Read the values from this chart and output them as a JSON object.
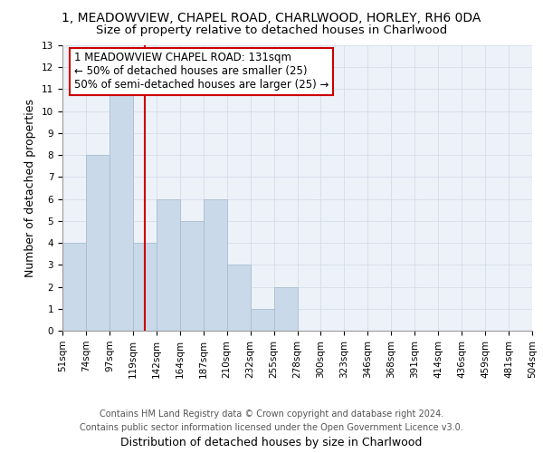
{
  "title_line1": "1, MEADOWVIEW, CHAPEL ROAD, CHARLWOOD, HORLEY, RH6 0DA",
  "title_line2": "Size of property relative to detached houses in Charlwood",
  "xlabel": "Distribution of detached houses by size in Charlwood",
  "ylabel": "Number of detached properties",
  "bins": [
    51,
    74,
    97,
    119,
    142,
    164,
    187,
    210,
    232,
    255,
    278,
    300,
    323,
    346,
    368,
    391,
    414,
    436,
    459,
    481,
    504
  ],
  "bin_labels": [
    "51sqm",
    "74sqm",
    "97sqm",
    "119sqm",
    "142sqm",
    "164sqm",
    "187sqm",
    "210sqm",
    "232sqm",
    "255sqm",
    "278sqm",
    "300sqm",
    "323sqm",
    "346sqm",
    "368sqm",
    "391sqm",
    "414sqm",
    "436sqm",
    "459sqm",
    "481sqm",
    "504sqm"
  ],
  "counts": [
    4,
    8,
    11,
    4,
    6,
    5,
    6,
    3,
    1,
    2,
    0,
    0,
    0,
    0,
    0,
    0,
    0,
    0,
    0,
    0
  ],
  "bar_color": "#c9d9ea",
  "bar_edge_color": "#a8bece",
  "grid_color": "#d4dde8",
  "background_color": "#edf2f8",
  "subject_value": 131,
  "vline_color": "#cc0000",
  "annotation_text": "1 MEADOWVIEW CHAPEL ROAD: 131sqm\n← 50% of detached houses are smaller (25)\n50% of semi-detached houses are larger (25) →",
  "annotation_box_edge": "#cc0000",
  "ylim": [
    0,
    13
  ],
  "yticks": [
    0,
    1,
    2,
    3,
    4,
    5,
    6,
    7,
    8,
    9,
    10,
    11,
    12,
    13
  ],
  "footnote": "Contains HM Land Registry data © Crown copyright and database right 2024.\nContains public sector information licensed under the Open Government Licence v3.0.",
  "title_fontsize": 10,
  "subtitle_fontsize": 9.5,
  "axis_label_fontsize": 9,
  "tick_fontsize": 7.5,
  "annotation_fontsize": 8.5
}
